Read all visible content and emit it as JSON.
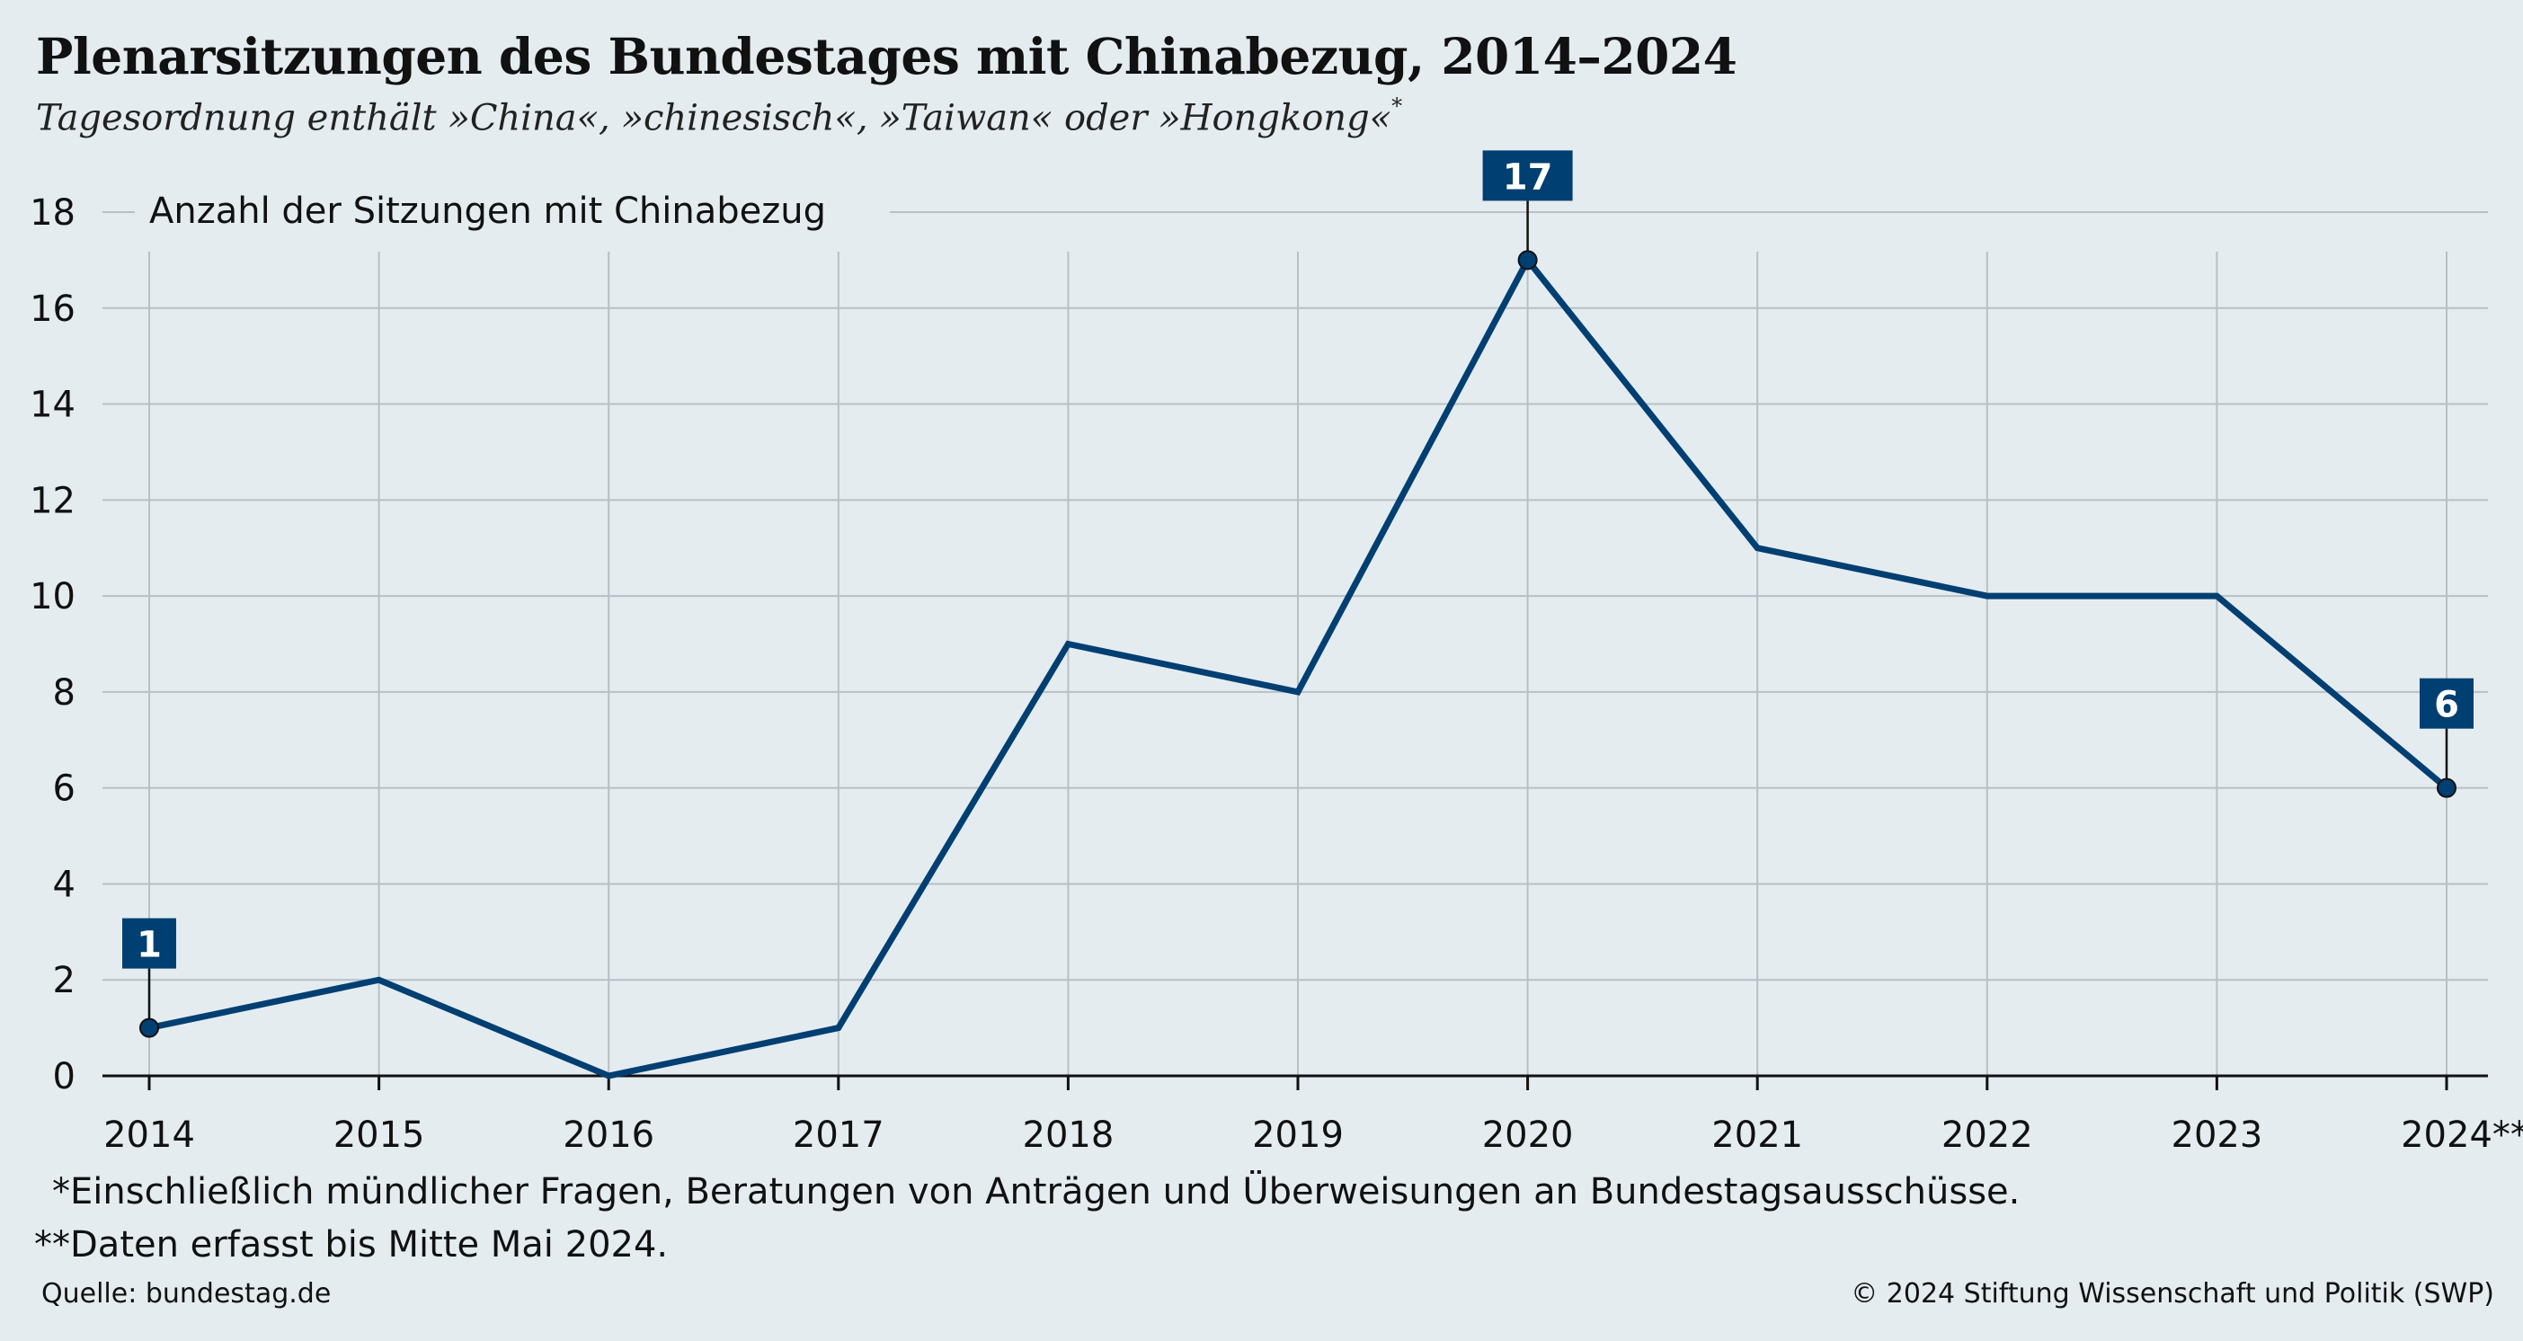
{
  "header": {
    "title": "Plenarsitzungen des Bundestages mit Chinabezug, 2014–2024",
    "subtitle": "Tagesordnung enthält »China«, »chinesisch«, »Taiwan« oder »Hongkong«",
    "subtitle_mark": "*"
  },
  "chart_data": {
    "type": "line",
    "ylabel": "Anzahl der Sitzungen mit Chinabezug",
    "categories": [
      "2014",
      "2015",
      "2016",
      "2017",
      "2018",
      "2019",
      "2020",
      "2021",
      "2022",
      "2023",
      "2024**"
    ],
    "series": [
      {
        "values": [
          1,
          2,
          0,
          1,
          9,
          8,
          17,
          11,
          10,
          10,
          6
        ]
      }
    ],
    "ylim": [
      0,
      18
    ],
    "yticks": [
      "0",
      "2",
      "4",
      "6",
      "8",
      "10",
      "12",
      "14",
      "16",
      "18"
    ],
    "grid": true,
    "annotations": [
      {
        "category": "2014",
        "label": "1"
      },
      {
        "category": "2020",
        "label": "17"
      },
      {
        "category": "2024**",
        "label": "6"
      }
    ],
    "colors": {
      "line": "#003f72",
      "label_box": "#003f72",
      "label_text": "#ffffff",
      "grid": "#b8c0c5"
    }
  },
  "footer": {
    "note1": "*Einschließlich mündlicher Fragen, Beratungen von Anträgen und Überweisungen an Bundestagsausschüsse.",
    "note2": "**Daten erfasst bis Mitte Mai 2024.",
    "source": "Quelle: bundestag.de",
    "copyright": "© 2024 Stiftung Wissenschaft und Politik (SWP)"
  }
}
